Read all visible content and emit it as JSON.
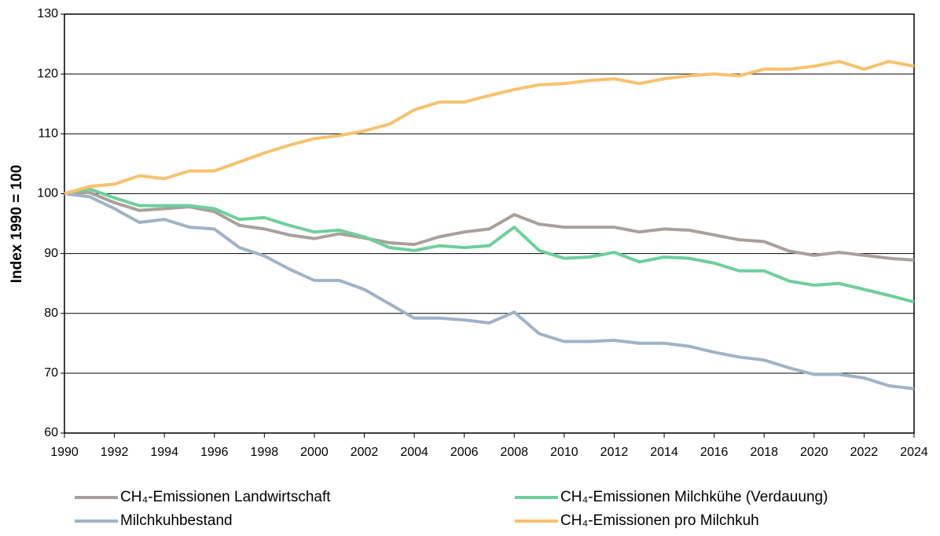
{
  "chart_data": {
    "type": "line",
    "y_label": "Index 1990 = 100",
    "x": [
      1990,
      1991,
      1992,
      1993,
      1994,
      1995,
      1996,
      1997,
      1998,
      1999,
      2000,
      2001,
      2002,
      2003,
      2004,
      2005,
      2006,
      2007,
      2008,
      2009,
      2010,
      2011,
      2012,
      2013,
      2014,
      2015,
      2016,
      2017,
      2018,
      2019,
      2020,
      2021,
      2022,
      2023,
      2024
    ],
    "xlim": [
      1990,
      2024
    ],
    "xticks": [
      1990,
      1992,
      1994,
      1996,
      1998,
      2000,
      2002,
      2004,
      2006,
      2008,
      2010,
      2012,
      2014,
      2016,
      2018,
      2020,
      2022,
      2024
    ],
    "ylim": [
      60,
      130
    ],
    "yticks": [
      60,
      70,
      80,
      90,
      100,
      110,
      120,
      130
    ],
    "grid": true,
    "legend": "bottom",
    "series": [
      {
        "name": "CH₄-Emissionen Landwirtschaft",
        "color": "#aaa09a",
        "values": [
          100,
          100.2,
          98.5,
          97.2,
          97.5,
          97.8,
          97,
          94.7,
          94.1,
          93.1,
          92.5,
          93.3,
          92.6,
          91.8,
          91.5,
          92.8,
          93.6,
          94.1,
          96.5,
          94.9,
          94.4,
          94.4,
          94.4,
          93.6,
          94.1,
          93.9,
          93.1,
          92.3,
          92,
          90.4,
          89.7,
          90.2,
          89.7,
          89.2,
          88.9
        ]
      },
      {
        "name": "CH₄-Emissionen Milchkühe (Verdauung)",
        "color": "#6dcf9a",
        "values": [
          100,
          100.8,
          99.3,
          98,
          98,
          98,
          97.5,
          95.7,
          96,
          94.7,
          93.6,
          93.9,
          92.8,
          91,
          90.5,
          91.3,
          91,
          91.3,
          94.4,
          90.5,
          89.2,
          89.4,
          90.2,
          88.6,
          89.4,
          89.2,
          88.4,
          87.1,
          87.1,
          85.4,
          84.7,
          85,
          84,
          83,
          81.9
        ]
      },
      {
        "name": "Milchkuhbestand",
        "color": "#9fb3c8",
        "values": [
          100,
          99.5,
          97.5,
          95.2,
          95.7,
          94.4,
          94.1,
          91,
          89.6,
          87.4,
          85.5,
          85.5,
          84,
          81.6,
          79.2,
          79.2,
          78.9,
          78.4,
          80.2,
          76.6,
          75.3,
          75.3,
          75.5,
          75,
          75,
          74.5,
          73.5,
          72.7,
          72.2,
          70.9,
          69.8,
          69.8,
          69.2,
          67.9,
          67.4
        ]
      },
      {
        "name": "CH₄-Emissionen pro Milchkuh",
        "color": "#f8c16e",
        "values": [
          100,
          101.2,
          101.6,
          103,
          102.5,
          103.8,
          103.8,
          105.3,
          106.8,
          108.1,
          109.2,
          109.7,
          110.5,
          111.6,
          114,
          115.3,
          115.3,
          116.4,
          117.4,
          118.2,
          118.4,
          118.9,
          119.2,
          118.4,
          119.2,
          119.7,
          120,
          119.7,
          120.8,
          120.8,
          121.3,
          122.1,
          120.8,
          122.1,
          121.3
        ]
      }
    ]
  }
}
